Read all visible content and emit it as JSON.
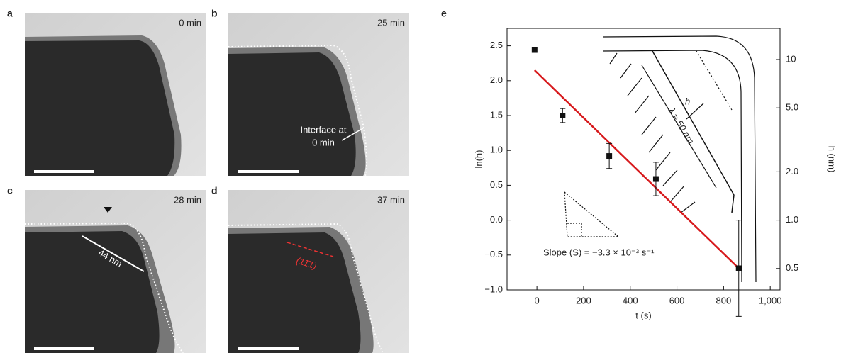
{
  "panels": [
    {
      "label": "a",
      "time": "0 min"
    },
    {
      "label": "b",
      "time": "25 min",
      "annotation": [
        "Interface at",
        "0 min"
      ]
    },
    {
      "label": "c",
      "time": "28 min",
      "annotation": "44 nm"
    },
    {
      "label": "d",
      "time": "37 min",
      "annotation": "(11̄1)"
    }
  ],
  "chart_data": {
    "type": "scatter",
    "label": "e",
    "xlabel": "t (s)",
    "ylabel": "ln(h)",
    "y2label": "h (nm)",
    "x": [
      -10,
      110,
      310,
      510,
      865
    ],
    "values": [
      2.44,
      1.5,
      0.92,
      0.59,
      -0.69
    ],
    "errors": [
      null,
      0.1,
      0.18,
      0.24,
      0.69
    ],
    "color": "#111111",
    "fit": {
      "x": [
        -10,
        865
      ],
      "values": [
        2.15,
        -0.69
      ],
      "color": "#d7191c"
    },
    "xlim": [
      -128,
      1042
    ],
    "xticks": [
      0,
      200,
      400,
      600,
      800,
      {
        "value": 1000,
        "label": "1,000"
      }
    ],
    "ylim": [
      -1,
      2.75
    ],
    "yticks": [
      {
        "value": -1,
        "label": "−1.0"
      },
      {
        "value": -0.5,
        "label": "−0.5"
      },
      {
        "value": 0,
        "label": "0.0"
      },
      0.5,
      {
        "value": 1,
        "label": "1.0"
      },
      1.5,
      {
        "value": 2,
        "label": "2.0"
      },
      2.5
    ],
    "y2_log": true,
    "y2lim": [
      0.3679,
      15.64
    ],
    "y2ticks": [
      0.5,
      {
        "value": 1,
        "label": "1.0"
      },
      {
        "value": 2,
        "label": "2.0"
      },
      {
        "value": 5,
        "label": "5.0"
      },
      10
    ],
    "annotations": {
      "slope": "Slope (S) = −3.3 × 10⁻³ s⁻¹",
      "lambda": "λ ≈ 50 nm",
      "h": "h"
    }
  }
}
